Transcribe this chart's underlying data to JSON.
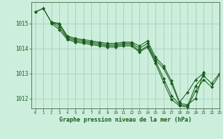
{
  "title": "Graphe pression niveau de la mer (hPa)",
  "background_color": "#cceedd",
  "plot_bg_color": "#cceedd",
  "grid_color": "#aaccbb",
  "line_color": "#1a5c1a",
  "marker_color": "#1a5c1a",
  "xlim": [
    -0.5,
    23
  ],
  "ylim": [
    1011.6,
    1015.85
  ],
  "yticks": [
    1012,
    1013,
    1014,
    1015
  ],
  "xticks": [
    0,
    1,
    2,
    3,
    4,
    5,
    6,
    7,
    8,
    9,
    10,
    11,
    12,
    13,
    14,
    15,
    16,
    17,
    18,
    19,
    20,
    21,
    22,
    23
  ],
  "series": [
    {
      "x": [
        0,
        1,
        2,
        3,
        4,
        5,
        6,
        7,
        8,
        9,
        10,
        11,
        12,
        13,
        14,
        15,
        16,
        17,
        18,
        19,
        20,
        21
      ],
      "y": [
        1015.45,
        1015.6,
        1015.05,
        1014.95,
        1014.45,
        1014.35,
        1014.3,
        1014.25,
        1014.2,
        1014.15,
        1014.15,
        1014.2,
        1014.2,
        1014.0,
        1014.2,
        1013.55,
        1013.2,
        1012.6,
        1011.8,
        1011.75,
        1012.0,
        1013.05
      ]
    },
    {
      "x": [
        0,
        1,
        2,
        3,
        4,
        5,
        6,
        7,
        8,
        9,
        10,
        11,
        12,
        13,
        14,
        15,
        16,
        17,
        18,
        19,
        20,
        21
      ],
      "y": [
        1015.45,
        1015.6,
        1015.05,
        1015.0,
        1014.5,
        1014.4,
        1014.35,
        1014.3,
        1014.25,
        1014.2,
        1014.2,
        1014.25,
        1014.25,
        1014.1,
        1014.3,
        1013.65,
        1013.3,
        1012.7,
        1011.85,
        1012.25,
        1012.75,
        1013.0
      ]
    },
    {
      "x": [
        2,
        3,
        4,
        5,
        6,
        7,
        8,
        9,
        10,
        11,
        12,
        13,
        14,
        15,
        16,
        17,
        18,
        19,
        20,
        21,
        22,
        23
      ],
      "y": [
        1015.05,
        1014.85,
        1014.4,
        1014.3,
        1014.25,
        1014.2,
        1014.15,
        1014.1,
        1014.1,
        1014.15,
        1014.15,
        1013.9,
        1014.1,
        1013.5,
        1012.8,
        1012.1,
        1011.75,
        1011.7,
        1012.5,
        1012.9,
        1012.6,
        1013.0
      ]
    },
    {
      "x": [
        2,
        3,
        4,
        5,
        6,
        7,
        8,
        9,
        10,
        11,
        12,
        13,
        14,
        15,
        16,
        17,
        18,
        19,
        20,
        21,
        22,
        23
      ],
      "y": [
        1015.0,
        1014.75,
        1014.35,
        1014.25,
        1014.2,
        1014.15,
        1014.1,
        1014.05,
        1014.05,
        1014.1,
        1014.1,
        1013.85,
        1014.05,
        1013.4,
        1012.65,
        1011.95,
        1011.7,
        1011.65,
        1012.3,
        1012.75,
        1012.45,
        1012.95
      ]
    }
  ]
}
